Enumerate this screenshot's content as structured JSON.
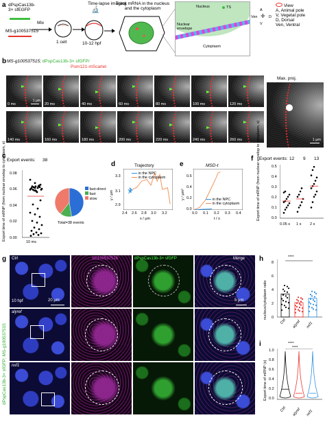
{
  "panels": {
    "a": "a",
    "b": "b",
    "c": "c",
    "d": "d",
    "e": "e",
    "f": "f",
    "g": "g",
    "h": "h",
    "i": "i"
  },
  "a": {
    "probe": "dPspCas13b-\n3× sfEGFP",
    "target": "MS-g100537515",
    "mix": "Mix",
    "cell": "1 cell",
    "stage": "10-12 hpf",
    "imaging": "Time-lapse imaging",
    "track": "Track mRNA in the nucleus and the cytoplasm",
    "nucleus": "Nucleus",
    "ts": "TS",
    "envelope": "Nuclear envelope",
    "cytoplasm": "Cytoplasm",
    "compass": {
      "a": "A",
      "v": "V",
      "ven": "Ven",
      "d": "D"
    },
    "legend_title": "View",
    "legend": [
      "A, Animal pole",
      "V, Vegetal pole",
      "D, Dorsal",
      "Ven, Ventral"
    ]
  },
  "b": {
    "target": "MS-g100537515;",
    "probe": "dPspCas13b-3× sfGFP/",
    "marker": "Pom121-mScarlet",
    "frames_row1": [
      "0 ms",
      "20 ms",
      "40 ms",
      "60 ms",
      "80 ms",
      "100 ms",
      "120 ms"
    ],
    "frames_row2": [
      "140 ms",
      "160 ms",
      "180 ms",
      "200 ms",
      "220 ms",
      "240 ms",
      "260 ms"
    ],
    "scale1": "1 μm",
    "maxproj": "Max. proj.",
    "scale2": "1 μm"
  },
  "c": {
    "export_label": "Export events:",
    "events": "38",
    "ylabel": "Export time of mRNP (from nuclear envelop to cytoplasm, s)",
    "ticks": [
      "0.08",
      "0.06",
      "0.04",
      "0.02",
      "0.00"
    ],
    "xlabel": "10 ms",
    "legend": [
      "fast-direct",
      "fast",
      "slow"
    ],
    "total": "Total=38 events"
  },
  "d": {
    "title": "Trajectory",
    "xlabel": "x / μm",
    "ylabel": "y / μm",
    "xticks": [
      "2.4",
      "2.6",
      "2.8",
      "3.0",
      "3.2"
    ],
    "yticks": [
      "3.3",
      "3.1",
      "2.9"
    ],
    "legend": [
      "in the NPC",
      "in the cytoplasm"
    ]
  },
  "e": {
    "title": "MSD-t",
    "xlabel": "t / s",
    "ylabel": "y / μm²",
    "xticks": [
      "0.0",
      "0.1",
      "0.2",
      "0.3",
      "0.4"
    ],
    "yticks": [
      "0.6",
      "0.4",
      "0.2",
      "0.0"
    ],
    "legend": [
      "in the NPC",
      "in the cytoplasm"
    ]
  },
  "f": {
    "export_label": "Export events:",
    "events": [
      "12",
      "9",
      "13"
    ],
    "ylabel": "Export time of mRNP (from nuclear envelop to cytoplasm, s)",
    "ticks": [
      "0.5",
      "0.4",
      "0.3",
      "0.2",
      "0.1",
      "0.0"
    ],
    "xcats": [
      "0.05 s",
      "1 s",
      "2 s"
    ]
  },
  "g": {
    "ctrl": "Ctrl",
    "hpf": "10 hpf",
    "scale1": "20 μm",
    "col2": "sm100537515",
    "col3": "dPspCas13b-3× sfGFP",
    "col4": "Merge",
    "scale2": "5 μm",
    "alyref": "alyref",
    "nxf1": "nxf1",
    "side_label": "dPspCas13b-3× sfGFP; MS-g100537515"
  },
  "h": {
    "ylabel": "nucleus/cytoplasm ratio",
    "yticks": [
      "8",
      "6",
      "4",
      "2",
      "0"
    ],
    "sig": "****",
    "xcats": [
      "Ctrl",
      "alyref",
      "nxf1"
    ]
  },
  "i": {
    "ylabel": "Export time of mRNP (s)",
    "yticks": [
      "1.0",
      "0.8",
      "0.6",
      "0.4",
      "0.2",
      "0.0"
    ],
    "sig1": "****",
    "sig2": "****",
    "xcats": [
      "Ctrl",
      "alyref",
      "nxf1"
    ]
  },
  "colors": {
    "accent_red": "#e8312a",
    "accent_blue": "#2b8fe0",
    "accent_orange": "#f08a4b",
    "accent_green": "#3fbf3f",
    "accent_magenta": "#e040e0"
  },
  "chart_data": [
    {
      "type": "scatter",
      "title": "",
      "xlabel": "10 ms",
      "ylabel": "Export time of mRNP (from nuclear envelop to cytoplasm, s)",
      "ylim": [
        0,
        0.08
      ],
      "points": [
        0.058,
        0.06,
        0.061,
        0.062,
        0.055,
        0.059,
        0.057,
        0.063,
        0.06,
        0.056,
        0.058,
        0.061,
        0.062,
        0.059,
        0.057,
        0.045,
        0.04,
        0.035,
        0.03,
        0.028,
        0.025,
        0.02,
        0.018,
        0.015,
        0.012,
        0.01,
        0.008,
        0.006,
        0.005,
        0.004,
        0.003,
        0.002,
        0.062,
        0.064,
        0.058,
        0.06,
        0.07,
        0.066
      ]
    },
    {
      "type": "pie",
      "title": "",
      "categories": [
        "fast-direct",
        "fast",
        "slow"
      ],
      "values": [
        18,
        5,
        15
      ],
      "total": "Total=38 events"
    },
    {
      "type": "line",
      "title": "Trajectory",
      "xlabel": "x / μm",
      "ylabel": "y / μm",
      "series": [
        {
          "name": "in the NPC",
          "x": [
            2.45,
            2.48,
            2.44,
            2.5,
            2.47,
            2.52,
            2.46,
            2.5
          ],
          "y": [
            3.05,
            3.08,
            3.1,
            3.06,
            3.12,
            3.09,
            3.07,
            3.1
          ]
        },
        {
          "name": "in the cytoplasm",
          "x": [
            2.52,
            2.6,
            2.7,
            2.8,
            2.88,
            2.95,
            3.0,
            3.05,
            3.1,
            3.2,
            3.25
          ],
          "y": [
            3.1,
            3.12,
            3.2,
            3.22,
            3.15,
            3.3,
            3.2,
            3.28,
            3.1,
            3.12,
            2.92
          ]
        }
      ]
    },
    {
      "type": "line",
      "title": "MSD-t",
      "xlabel": "t / s",
      "ylabel": "y / μm²",
      "series": [
        {
          "name": "in the NPC",
          "x": [
            0.0,
            0.05,
            0.1,
            0.15
          ],
          "y": [
            0.0,
            0.01,
            0.015,
            0.02
          ]
        },
        {
          "name": "in the cytoplasm",
          "x": [
            0.0,
            0.05,
            0.1,
            0.12,
            0.15,
            0.18,
            0.2,
            0.22
          ],
          "y": [
            0.0,
            0.05,
            0.2,
            0.3,
            0.45,
            0.6,
            0.72,
            0.74
          ]
        }
      ]
    },
    {
      "type": "scatter",
      "title": "",
      "xlabel": "",
      "ylabel": "Export time of mRNP (from nuclear envelop to cytoplasm, s)",
      "categories": [
        "0.05 s",
        "1 s",
        "2 s"
      ],
      "series": [
        {
          "name": "0.05 s",
          "values": [
            0.05,
            0.08,
            0.1,
            0.12,
            0.14,
            0.15,
            0.16,
            0.18,
            0.2,
            0.22,
            0.24,
            0.25
          ]
        },
        {
          "name": "1 s",
          "values": [
            0.06,
            0.1,
            0.12,
            0.15,
            0.18,
            0.2,
            0.22,
            0.25,
            0.28
          ]
        },
        {
          "name": "2 s",
          "values": [
            0.1,
            0.15,
            0.2,
            0.22,
            0.25,
            0.28,
            0.3,
            0.32,
            0.35,
            0.38,
            0.4,
            0.45,
            0.48
          ]
        }
      ]
    },
    {
      "type": "bar",
      "title": "",
      "categories": [
        "Ctrl",
        "alyref",
        "nxf1"
      ],
      "values": [
        3.2,
        2.0,
        2.6
      ],
      "ylabel": "nucleus/cytoplasm ratio",
      "ylim": [
        0,
        8
      ]
    },
    {
      "type": "box",
      "title": "",
      "categories": [
        "Ctrl",
        "alyref",
        "nxf1"
      ],
      "ylabel": "Export time of mRNP (s)",
      "ylim": [
        0,
        1.0
      ],
      "median": [
        0.2,
        0.12,
        0.12
      ]
    }
  ]
}
